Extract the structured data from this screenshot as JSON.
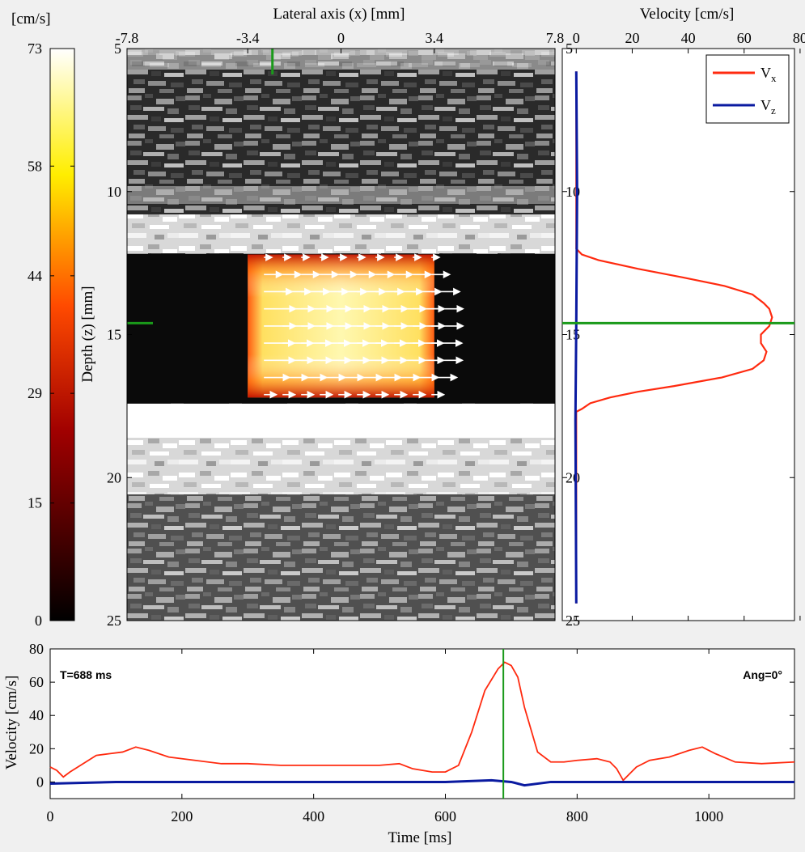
{
  "colorbar": {
    "unit_label": "[cm/s]",
    "ticks": [
      73,
      58,
      44,
      29,
      15,
      0
    ]
  },
  "image_panel": {
    "xlabel": "Lateral axis (x) [mm]",
    "ylabel": "Depth (z) [mm]",
    "xticks": [
      -7.8,
      -3.4,
      0,
      3.4,
      7.8
    ],
    "xlim": [
      -7.8,
      7.8
    ],
    "yticks": [
      5,
      10,
      15,
      20,
      25
    ],
    "ylim": [
      5,
      25
    ],
    "roi": {
      "x": [
        -3.4,
        3.4
      ],
      "z": [
        12.2,
        17.2
      ]
    },
    "marker": {
      "x": -2.5,
      "z": 14.6
    },
    "vessel": {
      "top_wall_z": [
        11.8,
        12.5
      ],
      "lumen_z": [
        12.5,
        17.3
      ],
      "bottom_wall_z": [
        17.4,
        18.6
      ]
    },
    "colors": {
      "marker": "#1a9a1a",
      "arrow": "#ffffff"
    }
  },
  "chart_data": [
    {
      "type": "line",
      "id": "profile",
      "xlabel": "Velocity [cm/s]",
      "ylabel": "",
      "xticks": [
        0,
        20,
        40,
        60,
        80
      ],
      "xlim": [
        -5,
        78
      ],
      "yticks": [
        5,
        10,
        15,
        20,
        25
      ],
      "ylim": [
        5,
        25
      ],
      "legend": "top-right",
      "marker_depth": 14.6,
      "series": [
        {
          "name": "V",
          "sub": "x",
          "color": "#ff2a0f",
          "depth": [
            5.8,
            12.0,
            12.2,
            12.4,
            12.7,
            13.0,
            13.3,
            13.6,
            13.9,
            14.1,
            14.4,
            14.7,
            15.0,
            15.3,
            15.6,
            15.9,
            16.2,
            16.5,
            16.8,
            17.0,
            17.2,
            17.4,
            17.6,
            17.7,
            24.4
          ],
          "velocity": [
            0,
            0,
            2,
            8,
            22,
            38,
            53,
            63,
            67,
            69,
            70,
            69,
            66,
            66,
            68,
            67,
            63,
            52,
            35,
            22,
            12,
            5,
            2,
            0,
            0
          ]
        },
        {
          "name": "V",
          "sub": "z",
          "color": "#0a1aa0",
          "depth": [
            5.8,
            10,
            14.6,
            18,
            24.4
          ],
          "velocity": [
            0,
            0.3,
            0,
            -0.3,
            0
          ]
        }
      ]
    },
    {
      "type": "line",
      "id": "time",
      "xlabel": "Time [ms]",
      "ylabel": "Velocity [cm/s]",
      "xticks": [
        0,
        200,
        400,
        600,
        800,
        1000
      ],
      "xlim": [
        0,
        1130
      ],
      "yticks": [
        0,
        20,
        40,
        60,
        80
      ],
      "ylim": [
        -10,
        80
      ],
      "cursor_ms": 688,
      "annotations": {
        "time": "T=688 ms",
        "angle": "Ang=0°"
      },
      "series": [
        {
          "name": "Vx",
          "color": "#ff2a0f",
          "t": [
            0,
            10,
            20,
            30,
            50,
            70,
            90,
            110,
            130,
            150,
            180,
            220,
            260,
            300,
            350,
            400,
            450,
            500,
            530,
            550,
            580,
            600,
            620,
            640,
            660,
            680,
            690,
            700,
            710,
            720,
            740,
            760,
            780,
            800,
            830,
            850,
            860,
            870,
            880,
            890,
            910,
            940,
            970,
            990,
            1010,
            1040,
            1080,
            1130
          ],
          "v": [
            9,
            7,
            3,
            6,
            11,
            16,
            17,
            18,
            21,
            19,
            15,
            13,
            11,
            11,
            10,
            10,
            10,
            10,
            11,
            8,
            6,
            6,
            10,
            30,
            55,
            68,
            72,
            70,
            63,
            45,
            18,
            12,
            12,
            13,
            14,
            12,
            8,
            1,
            5,
            9,
            13,
            15,
            19,
            21,
            17,
            12,
            11,
            12
          ]
        },
        {
          "name": "Vz",
          "color": "#0a1aa0",
          "t": [
            0,
            100,
            300,
            600,
            670,
            700,
            720,
            760,
            900,
            1130
          ],
          "v": [
            -1,
            0,
            0,
            0,
            1,
            0,
            -2,
            0,
            0,
            0
          ]
        }
      ]
    }
  ]
}
